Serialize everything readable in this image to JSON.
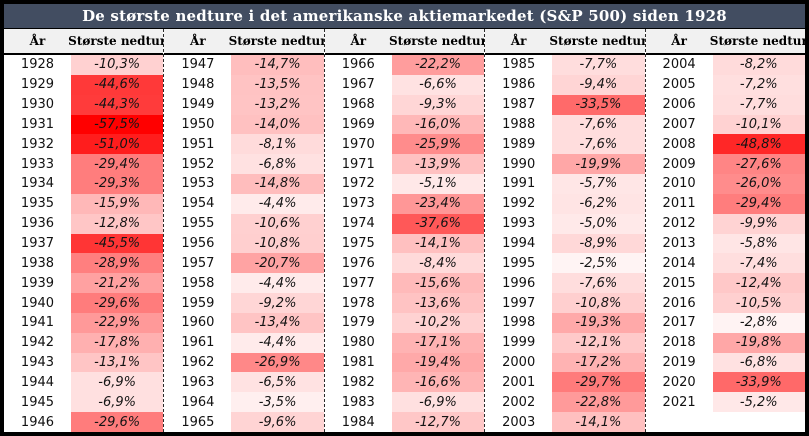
{
  "title": "De største nedture i det amerikanske aktiemarkedet (S&P 500) siden 1928",
  "columns": {
    "year_label": "År",
    "drawdown_label": "Største nedtur"
  },
  "colors": {
    "frame_border": "#000000",
    "title_bg": "#424D61",
    "title_text": "#FFFFFF",
    "header_bg": "#F1F1F1",
    "heat_min": "#FFFFFF",
    "heat_max": "#FF0000"
  },
  "heat_scale": {
    "min_abs_pct": 0,
    "max_abs_pct": 57.5
  },
  "groups": [
    {
      "rows": [
        [
          "1928",
          "-10,3%"
        ],
        [
          "1929",
          "-44,6%"
        ],
        [
          "1930",
          "-44,3%"
        ],
        [
          "1931",
          "-57,5%"
        ],
        [
          "1932",
          "-51,0%"
        ],
        [
          "1933",
          "-29,4%"
        ],
        [
          "1934",
          "-29,3%"
        ],
        [
          "1935",
          "-15,9%"
        ],
        [
          "1936",
          "-12,8%"
        ],
        [
          "1937",
          "-45,5%"
        ],
        [
          "1938",
          "-28,9%"
        ],
        [
          "1939",
          "-21,2%"
        ],
        [
          "1940",
          "-29,6%"
        ],
        [
          "1941",
          "-22,9%"
        ],
        [
          "1942",
          "-17,8%"
        ],
        [
          "1943",
          "-13,1%"
        ],
        [
          "1944",
          "-6,9%"
        ],
        [
          "1945",
          "-6,9%"
        ],
        [
          "1946",
          "-29,6%"
        ]
      ]
    },
    {
      "rows": [
        [
          "1947",
          "-14,7%"
        ],
        [
          "1948",
          "-13,5%"
        ],
        [
          "1949",
          "-13,2%"
        ],
        [
          "1950",
          "-14,0%"
        ],
        [
          "1951",
          "-8,1%"
        ],
        [
          "1952",
          "-6,8%"
        ],
        [
          "1953",
          "-14,8%"
        ],
        [
          "1954",
          "-4,4%"
        ],
        [
          "1955",
          "-10,6%"
        ],
        [
          "1956",
          "-10,8%"
        ],
        [
          "1957",
          "-20,7%"
        ],
        [
          "1958",
          "-4,4%"
        ],
        [
          "1959",
          "-9,2%"
        ],
        [
          "1960",
          "-13,4%"
        ],
        [
          "1961",
          "-4,4%"
        ],
        [
          "1962",
          "-26,9%"
        ],
        [
          "1963",
          "-6,5%"
        ],
        [
          "1964",
          "-3,5%"
        ],
        [
          "1965",
          "-9,6%"
        ]
      ]
    },
    {
      "rows": [
        [
          "1966",
          "-22,2%"
        ],
        [
          "1967",
          "-6,6%"
        ],
        [
          "1968",
          "-9,3%"
        ],
        [
          "1969",
          "-16,0%"
        ],
        [
          "1970",
          "-25,9%"
        ],
        [
          "1971",
          "-13,9%"
        ],
        [
          "1972",
          "-5,1%"
        ],
        [
          "1973",
          "-23,4%"
        ],
        [
          "1974",
          "-37,6%"
        ],
        [
          "1975",
          "-14,1%"
        ],
        [
          "1976",
          "-8,4%"
        ],
        [
          "1977",
          "-15,6%"
        ],
        [
          "1978",
          "-13,6%"
        ],
        [
          "1979",
          "-10,2%"
        ],
        [
          "1980",
          "-17,1%"
        ],
        [
          "1981",
          "-19,4%"
        ],
        [
          "1982",
          "-16,6%"
        ],
        [
          "1983",
          "-6,9%"
        ],
        [
          "1984",
          "-12,7%"
        ]
      ]
    },
    {
      "rows": [
        [
          "1985",
          "-7,7%"
        ],
        [
          "1986",
          "-9,4%"
        ],
        [
          "1987",
          "-33,5%"
        ],
        [
          "1988",
          "-7,6%"
        ],
        [
          "1989",
          "-7,6%"
        ],
        [
          "1990",
          "-19,9%"
        ],
        [
          "1991",
          "-5,7%"
        ],
        [
          "1992",
          "-6,2%"
        ],
        [
          "1993",
          "-5,0%"
        ],
        [
          "1994",
          "-8,9%"
        ],
        [
          "1995",
          "-2,5%"
        ],
        [
          "1996",
          "-7,6%"
        ],
        [
          "1997",
          "-10,8%"
        ],
        [
          "1998",
          "-19,3%"
        ],
        [
          "1999",
          "-12,1%"
        ],
        [
          "2000",
          "-17,2%"
        ],
        [
          "2001",
          "-29,7%"
        ],
        [
          "2002",
          "-22,8%"
        ],
        [
          "2003",
          "-14,1%"
        ]
      ]
    },
    {
      "rows": [
        [
          "2004",
          "-8,2%"
        ],
        [
          "2005",
          "-7,2%"
        ],
        [
          "2006",
          "-7,7%"
        ],
        [
          "2007",
          "-10,1%"
        ],
        [
          "2008",
          "-48,8%"
        ],
        [
          "2009",
          "-27,6%"
        ],
        [
          "2010",
          "-26,0%"
        ],
        [
          "2011",
          "-29,4%"
        ],
        [
          "2012",
          "-9,9%"
        ],
        [
          "2013",
          "-5,8%"
        ],
        [
          "2014",
          "-7,4%"
        ],
        [
          "2015",
          "-12,4%"
        ],
        [
          "2016",
          "-10,5%"
        ],
        [
          "2017",
          "-2,8%"
        ],
        [
          "2018",
          "-19,8%"
        ],
        [
          "2019",
          "-6,8%"
        ],
        [
          "2020",
          "-33,9%"
        ],
        [
          "2021",
          "-5,2%"
        ]
      ]
    }
  ],
  "chart_data": {
    "type": "table",
    "title": "De største nedture i det amerikanske aktiemarkedet (S&P 500) siden 1928",
    "columns": [
      "År",
      "Største nedtur"
    ],
    "heatmap": {
      "style": "white-to-red",
      "mapped_to": "abs drawdown %, 0 to 57.5"
    },
    "years": [
      1928,
      1929,
      1930,
      1931,
      1932,
      1933,
      1934,
      1935,
      1936,
      1937,
      1938,
      1939,
      1940,
      1941,
      1942,
      1943,
      1944,
      1945,
      1946,
      1947,
      1948,
      1949,
      1950,
      1951,
      1952,
      1953,
      1954,
      1955,
      1956,
      1957,
      1958,
      1959,
      1960,
      1961,
      1962,
      1963,
      1964,
      1965,
      1966,
      1967,
      1968,
      1969,
      1970,
      1971,
      1972,
      1973,
      1974,
      1975,
      1976,
      1977,
      1978,
      1979,
      1980,
      1981,
      1982,
      1983,
      1984,
      1985,
      1986,
      1987,
      1988,
      1989,
      1990,
      1991,
      1992,
      1993,
      1994,
      1995,
      1996,
      1997,
      1998,
      1999,
      2000,
      2001,
      2002,
      2003,
      2004,
      2005,
      2006,
      2007,
      2008,
      2009,
      2010,
      2011,
      2012,
      2013,
      2014,
      2015,
      2016,
      2017,
      2018,
      2019,
      2020,
      2021
    ],
    "drawdown_pct": [
      -10.3,
      -44.6,
      -44.3,
      -57.5,
      -51.0,
      -29.4,
      -29.3,
      -15.9,
      -12.8,
      -45.5,
      -28.9,
      -21.2,
      -29.6,
      -22.9,
      -17.8,
      -13.1,
      -6.9,
      -6.9,
      -29.6,
      -14.7,
      -13.5,
      -13.2,
      -14.0,
      -8.1,
      -6.8,
      -14.8,
      -4.4,
      -10.6,
      -10.8,
      -20.7,
      -4.4,
      -9.2,
      -13.4,
      -4.4,
      -26.9,
      -6.5,
      -3.5,
      -9.6,
      -22.2,
      -6.6,
      -9.3,
      -16.0,
      -25.9,
      -13.9,
      -5.1,
      -23.4,
      -37.6,
      -14.1,
      -8.4,
      -15.6,
      -13.6,
      -10.2,
      -17.1,
      -19.4,
      -16.6,
      -6.9,
      -12.7,
      -7.7,
      -9.4,
      -33.5,
      -7.6,
      -7.6,
      -19.9,
      -5.7,
      -6.2,
      -5.0,
      -8.9,
      -2.5,
      -7.6,
      -10.8,
      -19.3,
      -12.1,
      -17.2,
      -29.7,
      -22.8,
      -14.1,
      -8.2,
      -7.2,
      -7.7,
      -10.1,
      -48.8,
      -27.6,
      -26.0,
      -29.4,
      -9.9,
      -5.8,
      -7.4,
      -12.4,
      -10.5,
      -2.8,
      -19.8,
      -6.8,
      -33.9,
      -5.2
    ]
  }
}
